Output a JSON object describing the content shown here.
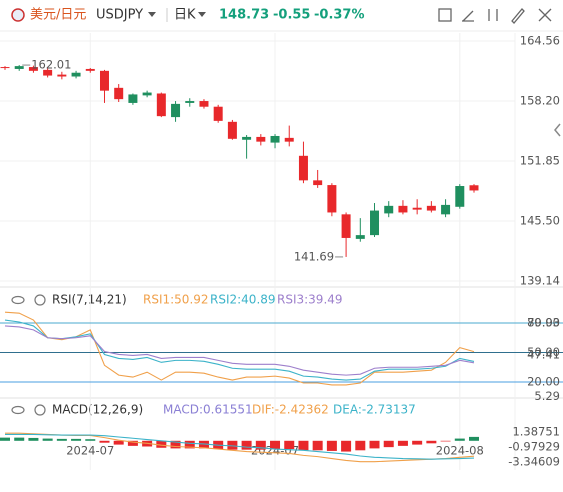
{
  "header": {
    "pair": "美元/日元",
    "symbol": "USDJPY",
    "period": "日K",
    "price": "148.73",
    "change": "-0.55",
    "change_pct": "-0.37%"
  },
  "chart_data": [
    {
      "type": "candlestick",
      "categories": [
        null,
        null,
        null,
        null,
        null,
        null,
        "2024-07",
        null,
        null,
        null,
        null,
        null,
        null,
        null,
        null,
        null,
        null,
        null,
        null,
        "2024-07",
        null,
        null,
        null,
        null,
        null,
        null,
        null,
        null,
        null,
        null,
        null,
        null,
        "2024-08",
        null
      ],
      "open": [
        161.8,
        161.6,
        161.8,
        161.5,
        161.0,
        160.8,
        161.6,
        161.4,
        159.6,
        158.0,
        158.8,
        159.0,
        156.5,
        158.0,
        158.2,
        157.6,
        156.0,
        154.1,
        154.4,
        153.8,
        154.3,
        152.4,
        149.8,
        149.3,
        146.2,
        143.6,
        144.0,
        146.3,
        147.1,
        146.9,
        147.1,
        146.2,
        147.0,
        149.28
      ],
      "high": [
        161.9,
        162.01,
        161.95,
        161.7,
        161.3,
        161.4,
        161.7,
        161.5,
        160.0,
        159.0,
        159.3,
        159.1,
        158.2,
        158.5,
        158.4,
        157.8,
        156.2,
        154.6,
        154.7,
        154.7,
        155.6,
        153.9,
        150.9,
        149.5,
        146.4,
        145.8,
        147.4,
        147.6,
        147.7,
        147.8,
        147.6,
        147.8,
        149.4,
        149.4
      ],
      "low": [
        161.5,
        161.4,
        161.2,
        160.7,
        160.5,
        160.6,
        161.2,
        158.0,
        158.1,
        157.8,
        158.6,
        156.5,
        156.0,
        157.6,
        157.4,
        155.9,
        154.1,
        152.1,
        153.5,
        153.2,
        153.4,
        149.5,
        149.0,
        146.0,
        141.69,
        143.3,
        143.8,
        145.9,
        146.2,
        146.2,
        146.4,
        145.9,
        146.8,
        148.5
      ],
      "close": [
        161.7,
        161.9,
        161.4,
        160.9,
        160.8,
        161.2,
        161.4,
        159.3,
        158.4,
        158.9,
        159.1,
        156.6,
        157.9,
        158.2,
        157.6,
        156.1,
        154.2,
        154.4,
        153.9,
        154.5,
        153.9,
        149.8,
        149.3,
        146.4,
        143.7,
        144.0,
        146.6,
        147.1,
        146.4,
        146.7,
        146.6,
        147.2,
        149.2,
        148.73
      ],
      "up_color": "#1f8f5f",
      "down_color": "#e8282b",
      "ylim": [
        139.14,
        164.56
      ],
      "yticks": [
        164.56,
        {
          "value": 158.2,
          "label": "158.20"
        },
        151.85,
        {
          "value": 145.5,
          "label": "145.50"
        },
        139.14
      ],
      "grid": true,
      "annotations": [
        162.01,
        141.69
      ]
    },
    {
      "type": "line",
      "title": "RSI(7,14,21)",
      "series": [
        {
          "name": "RSI1:50.92",
          "color": "#f0a04a",
          "values": [
            91,
            90,
            83,
            65,
            63,
            66,
            73,
            37,
            27,
            25,
            30,
            22,
            30,
            30,
            29,
            25,
            22,
            25,
            25,
            26,
            24,
            19,
            19,
            17,
            17,
            19,
            30,
            30,
            30,
            31,
            32,
            40,
            55,
            50.92
          ]
        },
        {
          "name": "RSI2:40.89",
          "color": "#3cb3c9",
          "values": [
            83,
            81,
            77,
            65,
            64,
            66,
            69,
            48,
            44,
            43,
            45,
            40,
            42,
            42,
            41,
            38,
            34,
            33,
            33,
            33,
            31,
            26,
            25,
            23,
            22,
            23,
            31,
            33,
            33,
            33,
            34,
            36,
            44,
            40.89
          ]
        },
        {
          "name": "RSI3:39.49",
          "color": "#9d7fcc",
          "values": [
            77,
            76,
            73,
            65,
            64,
            65,
            67,
            51,
            48,
            47,
            48,
            44,
            45,
            45,
            45,
            42,
            39,
            38,
            38,
            38,
            36,
            32,
            30,
            28,
            27,
            28,
            34,
            35,
            35,
            35,
            36,
            37,
            42,
            39.49
          ]
        }
      ],
      "ylim": [
        0,
        100
      ],
      "yticks": [
        {
          "value": 80,
          "label": "80.00"
        },
        {
          "value": 50,
          "label": "50.00"
        },
        {
          "value": 20,
          "label": "20.00"
        }
      ],
      "line_colors": [
        "#4aa8cf",
        "#2f6f8e",
        "#4a9fe0"
      ],
      "grid": true,
      "annotations": [
        79.93,
        47.41,
        5.29
      ]
    },
    {
      "type": "macd",
      "title": "MACD(12,26,9)",
      "series": [
        {
          "name": "MACD:0.61551",
          "color": "#8a7fd4",
          "values": [
            0.5,
            0.5,
            0.45,
            0.35,
            0.3,
            0.3,
            0.25,
            -0.3,
            -0.6,
            -0.8,
            -0.9,
            -1.1,
            -1.2,
            -1.2,
            -1.2,
            -1.3,
            -1.4,
            -1.4,
            -1.4,
            -1.3,
            -1.3,
            -1.5,
            -1.5,
            -1.6,
            -1.7,
            -1.5,
            -1.2,
            -1.0,
            -0.8,
            -0.6,
            -0.4,
            -0.1,
            0.35,
            0.61551
          ]
        },
        {
          "name": "DIF:-2.42362",
          "color": "#f0a04a",
          "values": [
            1.2,
            1.2,
            1.1,
            1.0,
            0.9,
            0.85,
            0.85,
            0.5,
            0.1,
            -0.2,
            -0.4,
            -0.7,
            -0.9,
            -1.0,
            -1.1,
            -1.3,
            -1.5,
            -1.7,
            -1.8,
            -1.9,
            -2.0,
            -2.3,
            -2.5,
            -2.8,
            -3.1,
            -3.3,
            -3.3,
            -3.2,
            -3.1,
            -3.0,
            -2.9,
            -2.8,
            -2.6,
            -2.42362
          ]
        },
        {
          "name": "DEA:-2.73137",
          "color": "#3cb3c9",
          "values": [
            1.0,
            1.0,
            1.0,
            0.95,
            0.9,
            0.9,
            0.9,
            0.8,
            0.6,
            0.4,
            0.2,
            0.0,
            -0.2,
            -0.4,
            -0.5,
            -0.7,
            -0.8,
            -1.0,
            -1.1,
            -1.3,
            -1.4,
            -1.5,
            -1.7,
            -1.9,
            -2.1,
            -2.4,
            -2.6,
            -2.7,
            -2.8,
            -2.85,
            -2.9,
            -2.85,
            -2.8,
            -2.73137
          ]
        }
      ],
      "up_color": "#1f8f5f",
      "down_color": "#e8282b",
      "ylim": [
        -3.34609,
        1.38751
      ],
      "yticks": [
        1.38751,
        -0.97929,
        -3.34609
      ],
      "grid": false
    }
  ]
}
